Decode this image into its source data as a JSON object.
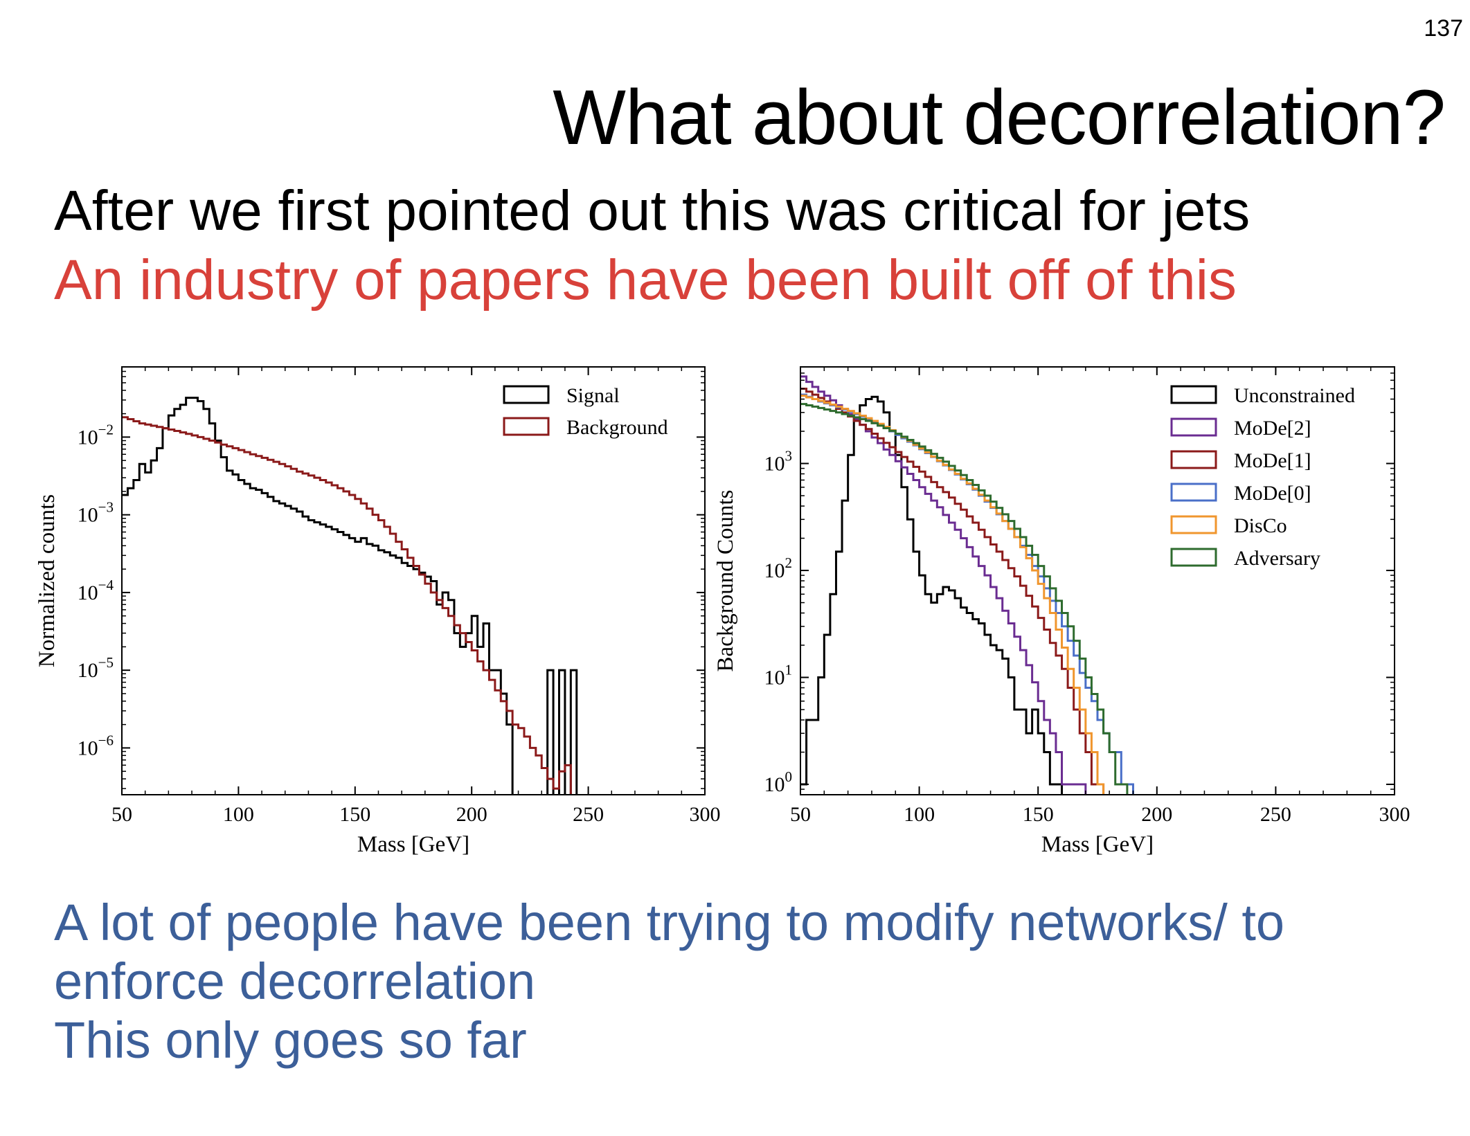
{
  "slide": {
    "number": "137",
    "title": "What about decorrelation?",
    "line1": "After we first pointed out this was critical for jets",
    "line2": "An industry of papers have been built off of this",
    "bottom_lines": [
      "A lot of people have been trying to modify networks/ to",
      "enforce decorrelation",
      "This only goes so far"
    ]
  },
  "colors": {
    "signal": "#000000",
    "background": "#8b1a1a",
    "unconstrained": "#000000",
    "mode2": "#6a2c91",
    "mode1": "#8b1a1a",
    "mode0": "#4a6fc8",
    "disco": "#f0962e",
    "adversary": "#2e6b2e",
    "line1_text": "#000000",
    "line2_text": "#d8413a",
    "bottom_text": "#3c5f99"
  },
  "chart_data": [
    {
      "type": "line",
      "xlabel": "Mass [GeV]",
      "ylabel": "Normalized counts",
      "x_ticks": [
        50,
        100,
        150,
        200,
        250,
        300
      ],
      "xlim": [
        50,
        300
      ],
      "y_scale": "log",
      "ylim": [
        2.5e-07,
        0.08
      ],
      "y_ticks": [
        {
          "value": 0.01,
          "base": "10",
          "exp": "−2"
        },
        {
          "value": 0.001,
          "base": "10",
          "exp": "−3"
        },
        {
          "value": 0.0001,
          "base": "10",
          "exp": "−4"
        },
        {
          "value": 1e-05,
          "base": "10",
          "exp": "−5"
        },
        {
          "value": 1e-06,
          "base": "10",
          "exp": "−6"
        }
      ],
      "legend_position": "top-right",
      "series": [
        {
          "name": "Signal",
          "color_key": "signal",
          "edges_start": 50,
          "bin_width": 2.5,
          "values": [
            0.0018,
            0.0022,
            0.0028,
            0.0045,
            0.0035,
            0.005,
            0.0072,
            0.013,
            0.019,
            0.023,
            0.026,
            0.032,
            0.032,
            0.029,
            0.023,
            0.015,
            0.009,
            0.0055,
            0.0037,
            0.0033,
            0.0028,
            0.0025,
            0.0022,
            0.0021,
            0.0019,
            0.0017,
            0.0015,
            0.0014,
            0.0013,
            0.0012,
            0.0011,
            0.00095,
            0.00085,
            0.0008,
            0.00075,
            0.0007,
            0.00065,
            0.0006,
            0.00055,
            0.0005,
            0.00045,
            0.0005,
            0.00042,
            0.0004,
            0.00035,
            0.00033,
            0.0003,
            0.00028,
            0.00024,
            0.00022,
            0.0002,
            0.00018,
            0.00016,
            0.00014,
            7e-05,
            0.0001,
            8e-05,
            3e-05,
            2e-05,
            3e-05,
            5e-05,
            2e-05,
            4e-05,
            1e-05,
            1e-05,
            5e-06,
            2e-06,
            0,
            0,
            0,
            0,
            0,
            0,
            1e-05,
            0,
            1e-05,
            0,
            1e-05,
            0,
            0,
            0,
            0,
            0,
            0,
            0,
            0,
            0,
            0,
            0,
            0,
            0,
            0,
            0,
            0,
            0,
            0,
            0,
            0,
            0,
            0
          ]
        },
        {
          "name": "Background",
          "color_key": "background",
          "edges_start": 50,
          "bin_width": 2.5,
          "values": [
            0.018,
            0.017,
            0.016,
            0.015,
            0.0145,
            0.014,
            0.0135,
            0.013,
            0.0125,
            0.012,
            0.0115,
            0.011,
            0.0105,
            0.01,
            0.0095,
            0.009,
            0.0085,
            0.008,
            0.0076,
            0.0072,
            0.0068,
            0.0064,
            0.006,
            0.0057,
            0.0054,
            0.0051,
            0.0048,
            0.0045,
            0.0042,
            0.0039,
            0.0036,
            0.0034,
            0.0032,
            0.003,
            0.0028,
            0.0026,
            0.0024,
            0.0022,
            0.002,
            0.0018,
            0.0016,
            0.0014,
            0.0012,
            0.001,
            0.00085,
            0.0007,
            0.00057,
            0.00045,
            0.00036,
            0.00028,
            0.00022,
            0.00017,
            0.00013,
            0.0001,
            8e-05,
            6.3e-05,
            5e-05,
            3.8e-05,
            3e-05,
            2.3e-05,
            1.8e-05,
            1.3e-05,
            1e-05,
            7.5e-06,
            5.5e-06,
            4e-06,
            3e-06,
            2e-06,
            1.8e-06,
            1.4e-06,
            1e-06,
            8e-07,
            5.5e-07,
            4e-07,
            3e-07,
            5e-07,
            6e-07,
            0,
            0,
            0,
            0,
            0,
            0,
            0,
            0,
            0,
            0,
            0,
            0,
            0,
            0,
            0,
            0,
            0,
            0,
            0,
            0,
            0,
            0,
            0
          ]
        }
      ]
    },
    {
      "type": "line",
      "xlabel": "Mass [GeV]",
      "ylabel": "Background Counts",
      "x_ticks": [
        50,
        100,
        150,
        200,
        250,
        300
      ],
      "xlim": [
        50,
        300
      ],
      "y_scale": "log",
      "ylim": [
        0.8,
        8000
      ],
      "y_ticks": [
        {
          "value": 1000,
          "base": "10",
          "exp": "3"
        },
        {
          "value": 100,
          "base": "10",
          "exp": "2"
        },
        {
          "value": 10,
          "base": "10",
          "exp": "1"
        },
        {
          "value": 1,
          "base": "10",
          "exp": "0"
        }
      ],
      "legend_position": "top-right",
      "series": [
        {
          "name": "Unconstrained",
          "color_key": "unconstrained",
          "edges_start": 50,
          "bin_width": 2.5,
          "values": [
            1,
            4,
            4,
            10,
            25,
            60,
            150,
            450,
            1200,
            2500,
            3500,
            4000,
            4200,
            3800,
            3000,
            2000,
            1200,
            600,
            300,
            150,
            90,
            60,
            50,
            60,
            70,
            65,
            55,
            45,
            40,
            35,
            32,
            25,
            20,
            18,
            15,
            10,
            5,
            5,
            3,
            5,
            3,
            2,
            1,
            1,
            0,
            0,
            0,
            0,
            0,
            0,
            0,
            0,
            0,
            0,
            0,
            0,
            0,
            0,
            0,
            0,
            0,
            0,
            0,
            0,
            0,
            0,
            0,
            0,
            0,
            0,
            0,
            0,
            0,
            0,
            0,
            0,
            0,
            0,
            0,
            0,
            0,
            0,
            0,
            0,
            0,
            0,
            0,
            0,
            0,
            0,
            0,
            0,
            0,
            0,
            0,
            0,
            0,
            0,
            0,
            0
          ]
        },
        {
          "name": "MoDe[2]",
          "color_key": "mode2",
          "edges_start": 50,
          "bin_width": 2.5,
          "values": [
            6500,
            5800,
            5200,
            4700,
            4300,
            3900,
            3500,
            3200,
            2900,
            2600,
            2300,
            2000,
            1750,
            1550,
            1350,
            1200,
            1050,
            920,
            800,
            700,
            600,
            520,
            450,
            390,
            330,
            280,
            240,
            200,
            165,
            135,
            110,
            90,
            70,
            55,
            42,
            32,
            24,
            18,
            13,
            9,
            6,
            4,
            3,
            2,
            1,
            1,
            1,
            1,
            0,
            0,
            0,
            0,
            0,
            0,
            0,
            0,
            0,
            0,
            0,
            0,
            0,
            0,
            0,
            0,
            0,
            0,
            0,
            0,
            0,
            0,
            0,
            0,
            0,
            0,
            0,
            0,
            0,
            0,
            0,
            0,
            0,
            0,
            0,
            0,
            0,
            0,
            0,
            0,
            0,
            0,
            0,
            0,
            0,
            0,
            0,
            0,
            0,
            0,
            0,
            0
          ]
        },
        {
          "name": "MoDe[1]",
          "color_key": "mode1",
          "edges_start": 50,
          "bin_width": 2.5,
          "values": [
            5000,
            4700,
            4400,
            4100,
            3800,
            3500,
            3250,
            3000,
            2750,
            2500,
            2300,
            2100,
            1900,
            1720,
            1560,
            1420,
            1280,
            1150,
            1040,
            930,
            840,
            750,
            670,
            600,
            540,
            480,
            420,
            370,
            320,
            280,
            240,
            205,
            175,
            150,
            125,
            105,
            88,
            72,
            58,
            46,
            36,
            28,
            21,
            16,
            12,
            8,
            5,
            3,
            2,
            1,
            1,
            0,
            0,
            0,
            0,
            0,
            0,
            0,
            0,
            0,
            0,
            0,
            0,
            0,
            0,
            0,
            0,
            0,
            0,
            0,
            0,
            0,
            0,
            0,
            0,
            0,
            0,
            0,
            0,
            0,
            0,
            0,
            0,
            0,
            0,
            0,
            0,
            0,
            0,
            0,
            0,
            0,
            0,
            0,
            0,
            0,
            0,
            0,
            0,
            0
          ]
        },
        {
          "name": "MoDe[0]",
          "color_key": "mode0",
          "edges_start": 50,
          "bin_width": 2.5,
          "values": [
            4400,
            4200,
            4000,
            3800,
            3650,
            3500,
            3350,
            3200,
            3050,
            2900,
            2750,
            2600,
            2450,
            2300,
            2150,
            2000,
            1850,
            1720,
            1600,
            1480,
            1360,
            1250,
            1150,
            1050,
            960,
            870,
            790,
            710,
            640,
            570,
            500,
            440,
            385,
            335,
            290,
            245,
            205,
            170,
            140,
            110,
            88,
            68,
            52,
            40,
            30,
            22,
            16,
            11,
            8,
            6,
            4,
            3,
            2,
            2,
            1,
            1,
            0,
            0,
            0,
            0,
            0,
            0,
            0,
            0,
            0,
            0,
            0,
            0,
            0,
            0,
            0,
            0,
            0,
            0,
            0,
            0,
            0,
            0,
            0,
            0,
            0,
            0,
            0,
            0,
            0,
            0,
            0,
            0,
            0,
            0,
            0,
            0,
            0,
            0,
            0,
            0,
            0,
            0,
            0,
            0
          ]
        },
        {
          "name": "DisCo",
          "color_key": "disco",
          "edges_start": 50,
          "bin_width": 2.5,
          "values": [
            4300,
            4150,
            4000,
            3850,
            3700,
            3550,
            3400,
            3250,
            3100,
            2950,
            2800,
            2650,
            2500,
            2350,
            2200,
            2050,
            1900,
            1760,
            1630,
            1500,
            1380,
            1270,
            1160,
            1060,
            970,
            880,
            800,
            720,
            650,
            580,
            510,
            450,
            390,
            340,
            290,
            245,
            205,
            165,
            130,
            100,
            75,
            55,
            40,
            28,
            19,
            12,
            8,
            5,
            3,
            2,
            1,
            0,
            0,
            0,
            0,
            0,
            0,
            0,
            0,
            0,
            0,
            0,
            0,
            0,
            0,
            0,
            0,
            0,
            0,
            0,
            0,
            0,
            0,
            0,
            0,
            0,
            0,
            0,
            0,
            0,
            0,
            0,
            0,
            0,
            0,
            0,
            0,
            0,
            0,
            0,
            0,
            0,
            0,
            0,
            0,
            0,
            0,
            0,
            0,
            0
          ]
        },
        {
          "name": "Adversary",
          "color_key": "adversary",
          "edges_start": 50,
          "bin_width": 2.5,
          "values": [
            3600,
            3500,
            3400,
            3300,
            3200,
            3100,
            3000,
            2900,
            2800,
            2700,
            2600,
            2500,
            2380,
            2260,
            2140,
            2020,
            1900,
            1780,
            1660,
            1550,
            1440,
            1330,
            1230,
            1130,
            1040,
            950,
            860,
            780,
            700,
            630,
            560,
            500,
            440,
            385,
            335,
            290,
            245,
            205,
            170,
            140,
            110,
            88,
            68,
            52,
            40,
            30,
            22,
            15,
            10,
            7,
            5,
            3,
            2,
            1,
            1,
            0,
            0,
            0,
            0,
            0,
            0,
            0,
            0,
            0,
            0,
            0,
            0,
            0,
            0,
            0,
            0,
            0,
            0,
            0,
            0,
            0,
            0,
            0,
            0,
            0,
            0,
            0,
            0,
            0,
            0,
            0,
            0,
            0,
            0,
            0,
            0,
            0,
            0,
            0,
            0,
            0,
            0,
            0,
            0,
            0
          ]
        }
      ]
    }
  ]
}
